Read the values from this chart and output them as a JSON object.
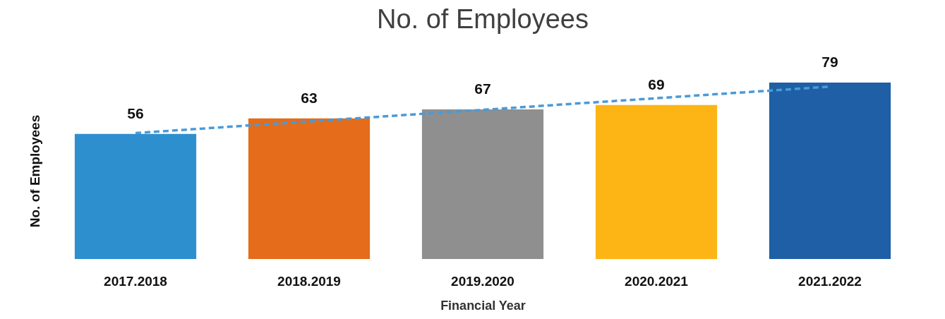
{
  "chart_data": {
    "type": "bar",
    "title": "No. of Employees",
    "xlabel": "Financial Year",
    "ylabel": "No. of Employees",
    "categories": [
      "2017.2018",
      "2018.2019",
      "2019.2020",
      "2020.2021",
      "2021.2022"
    ],
    "grid": false,
    "series": [
      {
        "colors": [
          "#2e8fcf",
          "#e46c1a",
          "#8f8f8f",
          "#fdb515",
          "#1f5fa5"
        ],
        "values": [
          56,
          63,
          67,
          69,
          79
        ],
        "value_labels": [
          "56",
          "63",
          "67",
          "69",
          "79"
        ]
      },
      {
        "type": "line",
        "x": [
          "2017.2018",
          "2018.2019",
          "2019.2020",
          "2020.2021",
          "2021.2022"
        ],
        "color": "#4a9ad8",
        "line_style": "dashed",
        "values": [
          56.4,
          61.6,
          66.8,
          72.0,
          77.2
        ]
      }
    ]
  }
}
